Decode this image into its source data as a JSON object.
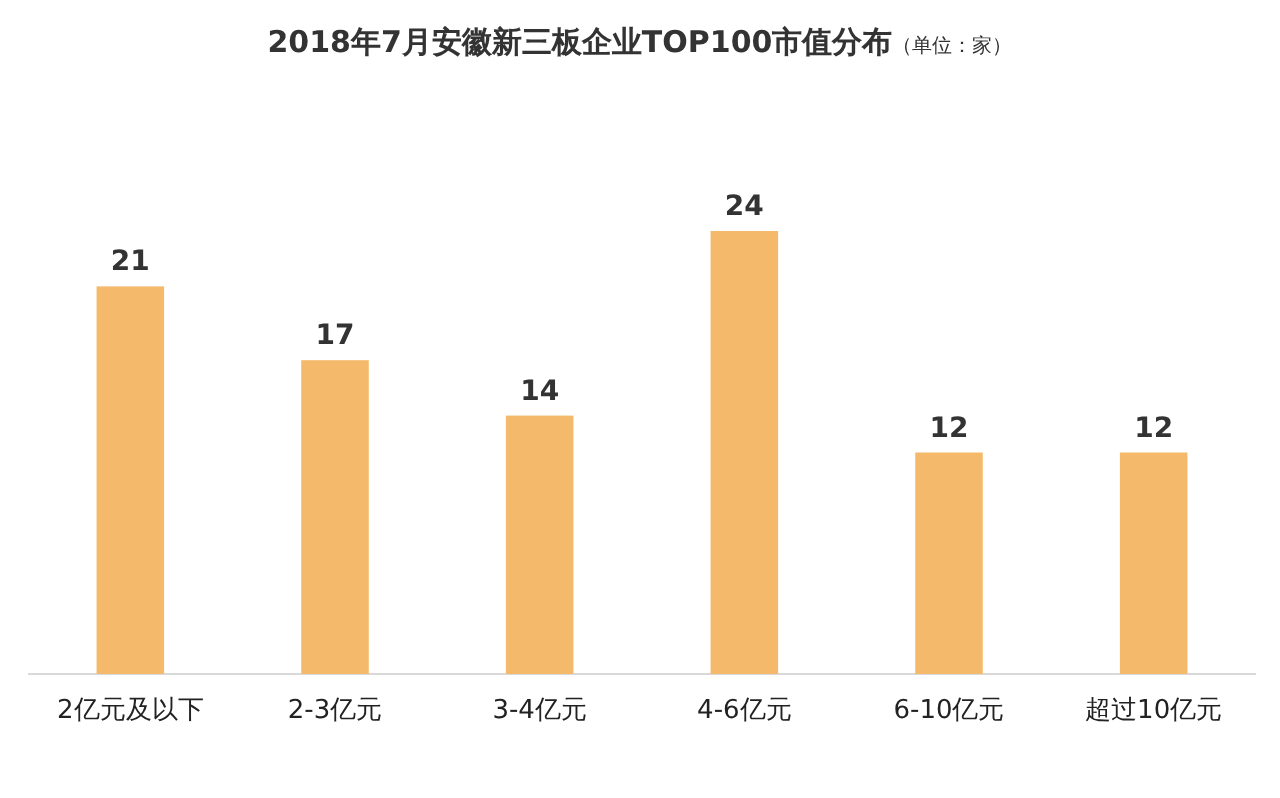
{
  "chart_data": {
    "type": "bar",
    "title": "2018年7月安徽新三板企业TOP100市值分布",
    "subtitle": "（单位：家）",
    "categories": [
      "2亿元及以下",
      "2-3亿元",
      "3-4亿元",
      "4-6亿元",
      "6-10亿元",
      "超过10亿元"
    ],
    "values": [
      21,
      17,
      14,
      24,
      12,
      12
    ],
    "color": "#f4b96a",
    "data_labels": true
  }
}
